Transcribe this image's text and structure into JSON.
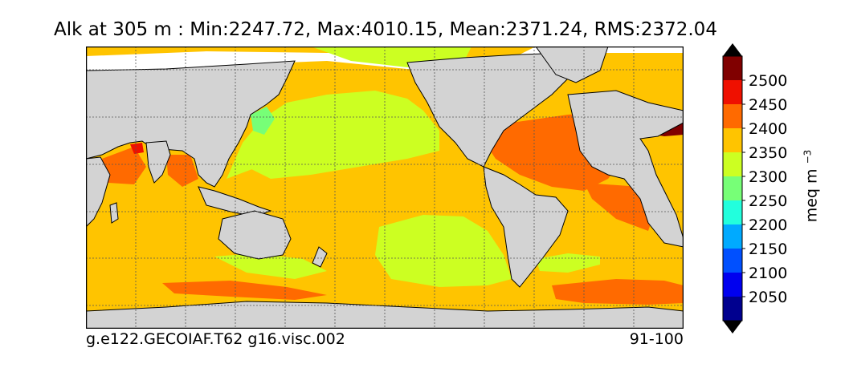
{
  "title": "Alk at 305 m : Min:2247.72, Max:4010.15, Mean:2371.24, RMS:2372.04",
  "footer": {
    "left": "g.e122.GECOIAF.T62 g16.visc.002",
    "right": "91-100"
  },
  "colorbar": {
    "unit": "meq m",
    "unit_exp": "−3",
    "extend": "both",
    "levels": [
      2000,
      2050,
      2100,
      2150,
      2200,
      2250,
      2300,
      2350,
      2400,
      2450,
      2500,
      2550
    ],
    "tick_labels": [
      "2050",
      "2100",
      "2150",
      "2200",
      "2250",
      "2300",
      "2350",
      "2400",
      "2450",
      "2500"
    ],
    "colors": [
      "#00008f",
      "#0000ef",
      "#0050ff",
      "#00aaff",
      "#22ffdd",
      "#77ff77",
      "#ccff22",
      "#ffc400",
      "#ff6a00",
      "#ef1000",
      "#800000"
    ],
    "under_color": "#000000",
    "over_color": "#000000"
  },
  "map": {
    "projection": "equirectangular, centered on Pacific",
    "land_color": "#d3d3d3",
    "missing_color": "#ffffff",
    "grid": "dashed"
  }
}
